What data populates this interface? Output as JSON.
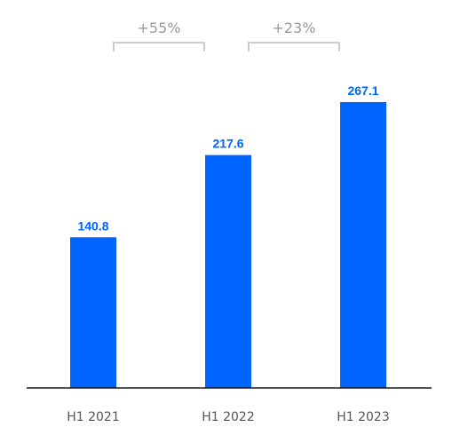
{
  "chart_data": {
    "type": "bar",
    "categories": [
      "H1 2021",
      "H1 2022",
      "H1 2023"
    ],
    "values": [
      140.8,
      217.6,
      267.1
    ],
    "value_labels": [
      "140.8",
      "217.6",
      "267.1"
    ],
    "ylim": [
      0,
      280
    ],
    "grid": false,
    "annotations": [
      {
        "text": "+55%",
        "from": "H1 2021",
        "to": "H1 2022"
      },
      {
        "text": "+23%",
        "from": "H1 2022",
        "to": "H1 2023"
      }
    ]
  },
  "colors": {
    "bar": "#0064ff",
    "value_label": "#0064ff",
    "axis": "#1a1a1a",
    "category_label": "#555555",
    "bracket": "#cccccc",
    "growth_label": "#9a9a9a"
  }
}
